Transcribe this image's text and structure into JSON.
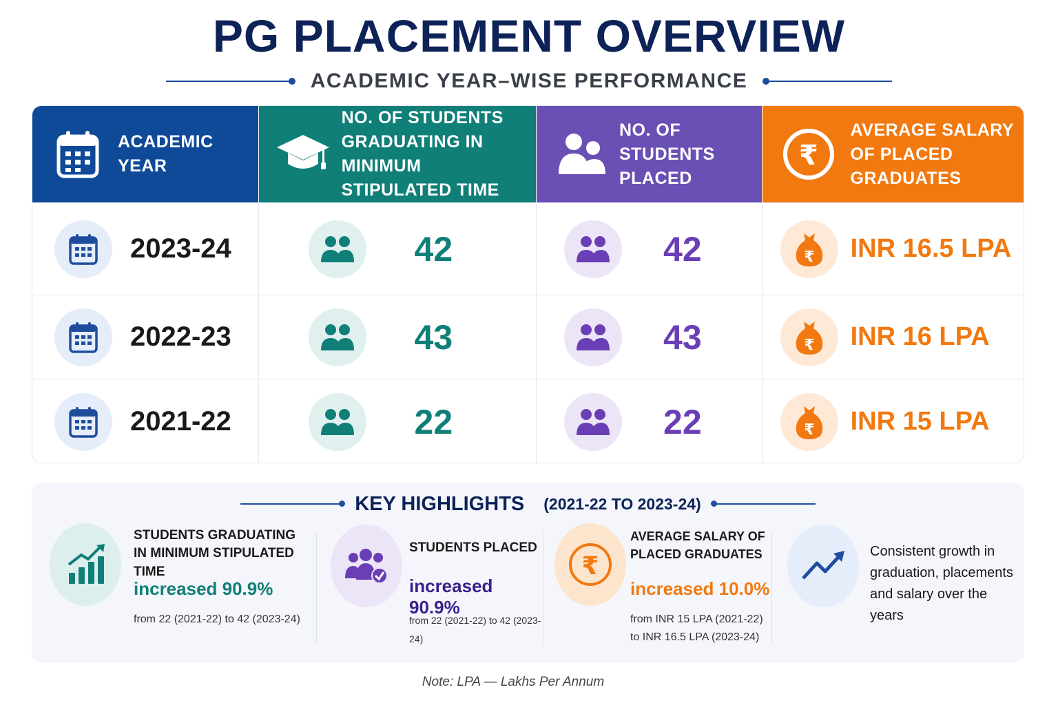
{
  "title": "PG PLACEMENT OVERVIEW",
  "subtitle": "ACADEMIC YEAR–WISE PERFORMANCE",
  "table": {
    "headers": [
      {
        "label": "ACADEMIC YEAR",
        "icon": "calendar-icon",
        "color": "#0f4a99"
      },
      {
        "label": "NO. OF STUDENTS GRADUATING IN MINIMUM STIPULATED TIME",
        "icon": "graduation-cap-icon",
        "color": "#0f7f78"
      },
      {
        "label": "NO. OF STUDENTS PLACED",
        "icon": "users-icon",
        "color": "#6a4fb5"
      },
      {
        "label": "AVERAGE SALARY OF PLACED GRADUATES",
        "icon": "rupee-icon",
        "color": "#f2790f"
      }
    ],
    "rows": [
      {
        "year": "2023-24",
        "graduating": "42",
        "placed": "42",
        "salary": "INR 16.5 LPA"
      },
      {
        "year": "2022-23",
        "graduating": "43",
        "placed": "43",
        "salary": "INR 16 LPA"
      },
      {
        "year": "2021-22",
        "graduating": "22",
        "placed": "22",
        "salary": "INR 15 LPA"
      }
    ]
  },
  "highlights": {
    "title": "KEY HIGHLIGHTS",
    "range": "(2021-22 TO 2023-24)",
    "cards": [
      {
        "label_line1": "STUDENTS GRADUATING",
        "label_line2": "IN MINIMUM STIPULATED TIME",
        "stat": "increased 90.9%",
        "from": "from 22 (2021-22) to 42 (2023-24)",
        "icon": "bar-chart-growth-icon",
        "color": "#0f7f78"
      },
      {
        "label": "STUDENTS PLACED",
        "stat": "increased 90.9%",
        "from": "from 22 (2021-22) to 42 (2023-24)",
        "icon": "users-check-icon",
        "color": "#3b1f8c"
      },
      {
        "label_line1": "AVERAGE SALARY OF",
        "label_line2": "PLACED GRADUATES",
        "stat": "increased 10.0%",
        "from_line1": "from INR 15 LPA (2021-22)",
        "from_line2": "to INR 16.5 LPA (2023-24)",
        "icon": "rupee-icon",
        "color": "#f2790f"
      },
      {
        "text_line1": "Consistent growth in",
        "text_line2": "graduation, placements",
        "text_line3": "and salary over the years",
        "icon": "trend-up-icon"
      }
    ]
  },
  "note": "Note: LPA — Lakhs Per Annum"
}
